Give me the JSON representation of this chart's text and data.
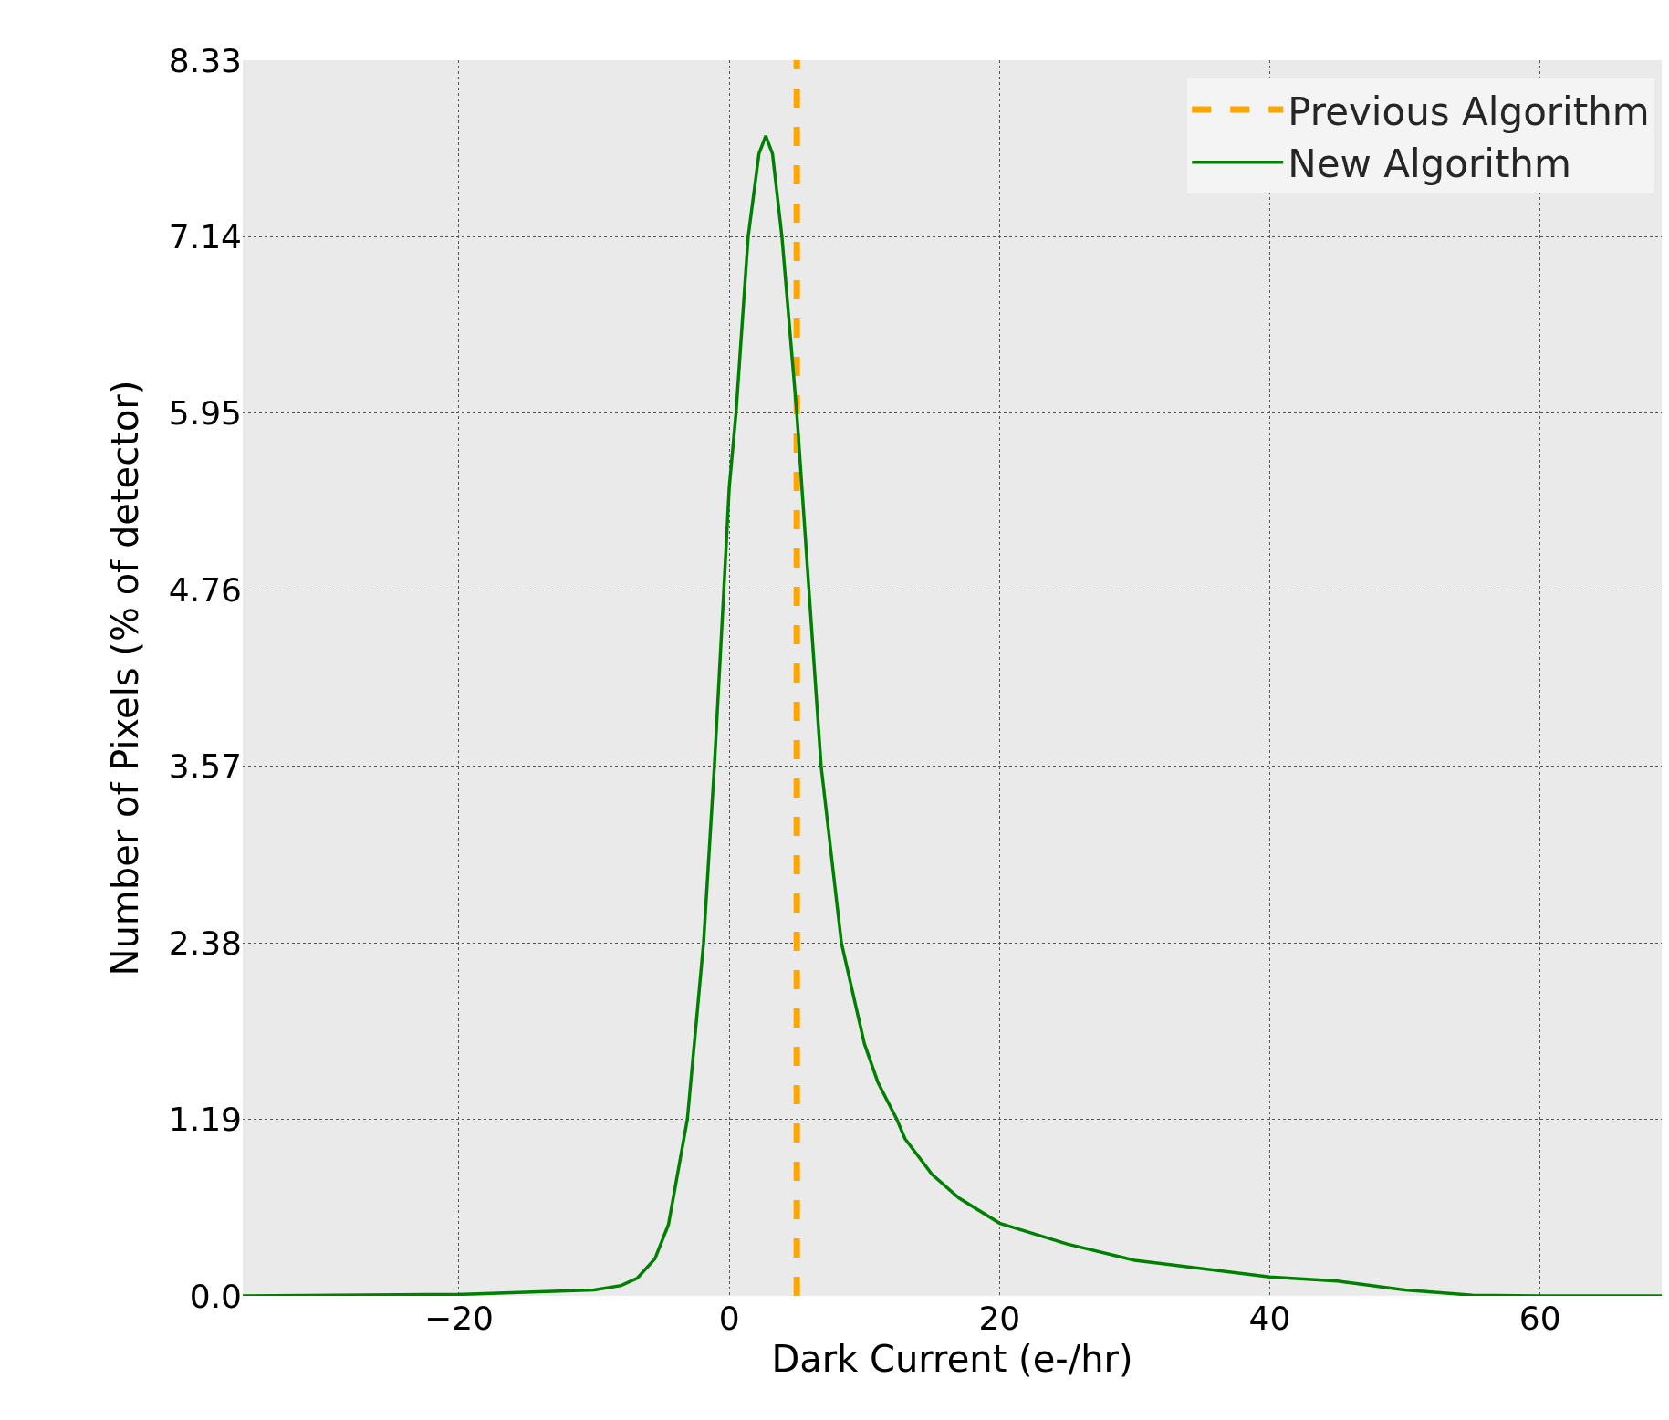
{
  "chart_data": {
    "type": "line",
    "xlabel": "Dark Current (e-/hr)",
    "ylabel": "Number of Pixels (% of detector)",
    "xlim": [
      -36,
      69
    ],
    "ylim": [
      0,
      8.33
    ],
    "xticks": [
      {
        "value": -20,
        "label": "−20"
      },
      0,
      20,
      40,
      60
    ],
    "yticks": [
      {
        "value": 0,
        "label": "0.0"
      },
      1.19,
      2.38,
      3.57,
      4.76,
      5.95,
      7.14,
      8.33
    ],
    "grid": true,
    "legend": "top right",
    "line_style": "solid",
    "marker": "none",
    "series": [
      {
        "name": "Previous Algorithm",
        "type": "line",
        "color": "#ffa500",
        "line_style": "dashed",
        "x": [
          5,
          5
        ],
        "values": [
          0,
          8.33
        ]
      },
      {
        "name": "New Algorithm",
        "color": "#008000",
        "x": [
          -36,
          -20,
          -10,
          -8,
          -6.8,
          -5.5,
          -4.5,
          -3.1,
          -1.9,
          -1.1,
          -0.4,
          0,
          0.5,
          1.4,
          2.2,
          2.7,
          3.2,
          3.9,
          5.0,
          5.9,
          6.8,
          8.3,
          10,
          11,
          12.4,
          13,
          15,
          17,
          20,
          25,
          30,
          40,
          45,
          50,
          55,
          60,
          69
        ],
        "values": [
          0,
          0.01,
          0.04,
          0.07,
          0.12,
          0.25,
          0.48,
          1.19,
          2.38,
          3.57,
          4.76,
          5.45,
          5.95,
          7.14,
          7.7,
          7.82,
          7.7,
          7.14,
          5.95,
          4.76,
          3.57,
          2.38,
          1.7,
          1.44,
          1.19,
          1.06,
          0.82,
          0.66,
          0.49,
          0.35,
          0.24,
          0.128,
          0.1,
          0.04,
          0.005,
          0,
          0
        ]
      }
    ]
  }
}
